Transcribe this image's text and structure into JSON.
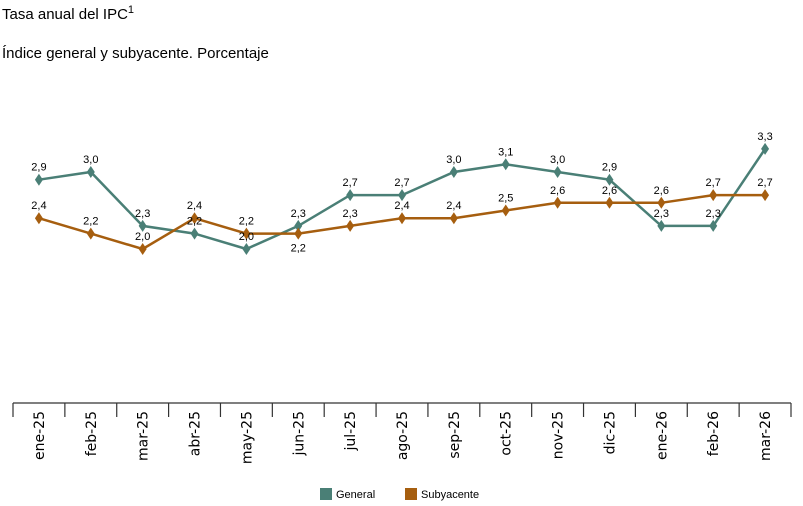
{
  "title": "Tasa anual del IPC",
  "title_sup": "1",
  "subtitle": "Índice general y subyacente. Porcentaje",
  "chart_data": {
    "type": "line",
    "categories": [
      "ene-25",
      "feb-25",
      "mar-25",
      "abr-25",
      "may-25",
      "jun-25",
      "jul-25",
      "ago-25",
      "sep-25",
      "oct-25",
      "nov-25",
      "dic-25",
      "ene-26",
      "feb-26",
      "mar-26"
    ],
    "series": [
      {
        "name": "General",
        "color": "#4a7f76",
        "values": [
          2.9,
          3.0,
          2.3,
          2.2,
          2.0,
          2.3,
          2.7,
          2.7,
          3.0,
          3.1,
          3.0,
          2.9,
          2.3,
          2.3,
          3.3
        ]
      },
      {
        "name": "Subyacente",
        "color": "#a65e0f",
        "values": [
          2.4,
          2.2,
          2.0,
          2.4,
          2.2,
          2.2,
          2.3,
          2.4,
          2.4,
          2.5,
          2.6,
          2.6,
          2.6,
          2.7,
          2.7
        ]
      }
    ],
    "ylim": [
      0,
      3.3
    ],
    "grid": false,
    "legend": "bottom",
    "marker": "diamond",
    "decimal_separator": ","
  }
}
